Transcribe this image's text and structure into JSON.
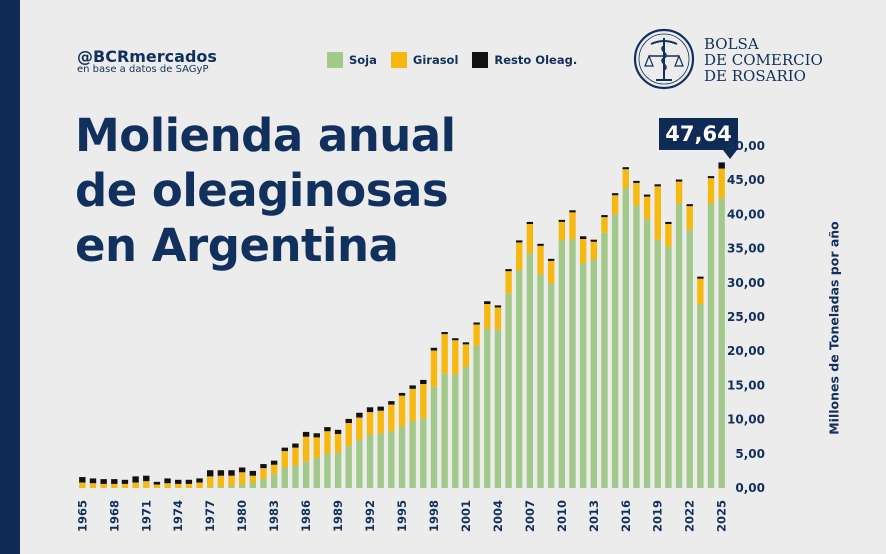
{
  "header": {
    "handle": "@BCRmercados",
    "source": "en base a datos de SAGyP",
    "title_lines": [
      "Molienda anual",
      "de oleaginosas",
      "en Argentina"
    ]
  },
  "logo": {
    "lines": [
      "BOLSA",
      "DE COMERCIO",
      "DE ROSARIO"
    ],
    "icon": "caduceus-scales-icon"
  },
  "callout": {
    "value": "47,64"
  },
  "colors": {
    "soja": "#a2c98a",
    "girasol": "#f7b90f",
    "resto": "#111111",
    "navy": "#12305d"
  },
  "chart_data": {
    "type": "bar",
    "stacked": true,
    "title": "Molienda anual de oleaginosas en Argentina",
    "xlabel": "",
    "ylabel": "Millones de Toneladas por año",
    "ylim": [
      0,
      50
    ],
    "yticks": [
      "0,00",
      "5,00",
      "10,00",
      "15,00",
      "20,00",
      "25,00",
      "30,00",
      "35,00",
      "40,00",
      "45,00",
      "50,00"
    ],
    "xtick_labels": [
      "1965",
      "1968",
      "1971",
      "1974",
      "1977",
      "1980",
      "1983",
      "1986",
      "1989",
      "1992",
      "1995",
      "1998",
      "2001",
      "2004",
      "2007",
      "2010",
      "2013",
      "2016",
      "2019",
      "2022",
      "2025"
    ],
    "categories": [
      "1965",
      "1966",
      "1967",
      "1968",
      "1969",
      "1970",
      "1971",
      "1972",
      "1973",
      "1974",
      "1975",
      "1976",
      "1977",
      "1978",
      "1979",
      "1980",
      "1981",
      "1982",
      "1983",
      "1984",
      "1985",
      "1986",
      "1987",
      "1988",
      "1989",
      "1990",
      "1991",
      "1992",
      "1993",
      "1994",
      "1995",
      "1996",
      "1997",
      "1998",
      "1999",
      "2000",
      "2001",
      "2002",
      "2003",
      "2004",
      "2005",
      "2006",
      "2007",
      "2008",
      "2009",
      "2010",
      "2011",
      "2012",
      "2013",
      "2014",
      "2015",
      "2016",
      "2017",
      "2018",
      "2019",
      "2020",
      "2021",
      "2022",
      "2023",
      "2024",
      "2025"
    ],
    "series": [
      {
        "name": "Soja",
        "values": [
          0,
          0,
          0,
          0,
          0,
          0,
          0,
          0,
          0,
          0,
          0,
          0,
          0.1,
          0.2,
          0.3,
          0.5,
          0.8,
          1.3,
          2.0,
          3.0,
          3.3,
          3.9,
          4.4,
          5.0,
          5.2,
          6.2,
          7.0,
          7.8,
          8.0,
          8.3,
          9.0,
          9.8,
          10.2,
          14.8,
          16.7,
          16.6,
          17.7,
          20.8,
          23.3,
          23.2,
          28.4,
          31.8,
          34.3,
          31.2,
          29.9,
          36.2,
          36.4,
          32.8,
          33.4,
          37.3,
          40.0,
          43.8,
          41.3,
          39.3,
          36.3,
          35.3,
          41.6,
          37.7,
          26.9,
          41.6,
          42.3
        ]
      },
      {
        "name": "Girasol",
        "values": [
          0.8,
          0.7,
          0.6,
          0.6,
          0.6,
          0.8,
          1.0,
          0.5,
          0.7,
          0.6,
          0.6,
          0.8,
          1.6,
          1.6,
          1.5,
          1.8,
          1.0,
          1.6,
          1.4,
          2.4,
          2.6,
          3.6,
          3.0,
          3.3,
          2.7,
          3.3,
          3.3,
          3.3,
          3.3,
          3.9,
          4.5,
          4.7,
          5.0,
          5.3,
          5.8,
          5.0,
          3.3,
          3.1,
          3.6,
          3.2,
          3.3,
          4.1,
          4.3,
          4.2,
          3.3,
          2.7,
          3.9,
          3.6,
          2.6,
          2.3,
          2.8,
          2.8,
          3.3,
          3.3,
          7.8,
          3.3,
          3.2,
          3.5,
          3.7,
          3.7,
          4.4
        ]
      },
      {
        "name": "Resto Oleag.",
        "values": [
          0.8,
          0.7,
          0.7,
          0.7,
          0.6,
          0.9,
          0.8,
          0.4,
          0.7,
          0.6,
          0.6,
          0.6,
          0.9,
          0.8,
          0.8,
          0.7,
          0.7,
          0.6,
          0.6,
          0.5,
          0.6,
          0.7,
          0.6,
          0.6,
          0.6,
          0.6,
          0.7,
          0.7,
          0.6,
          0.5,
          0.4,
          0.5,
          0.6,
          0.4,
          0.3,
          0.3,
          0.3,
          0.3,
          0.4,
          0.3,
          0.3,
          0.3,
          0.3,
          0.3,
          0.3,
          0.3,
          0.3,
          0.4,
          0.3,
          0.3,
          0.3,
          0.3,
          0.3,
          0.3,
          0.3,
          0.3,
          0.3,
          0.3,
          0.3,
          0.3,
          0.9
        ]
      }
    ],
    "annotation": "47,64",
    "legend_position": "top"
  }
}
